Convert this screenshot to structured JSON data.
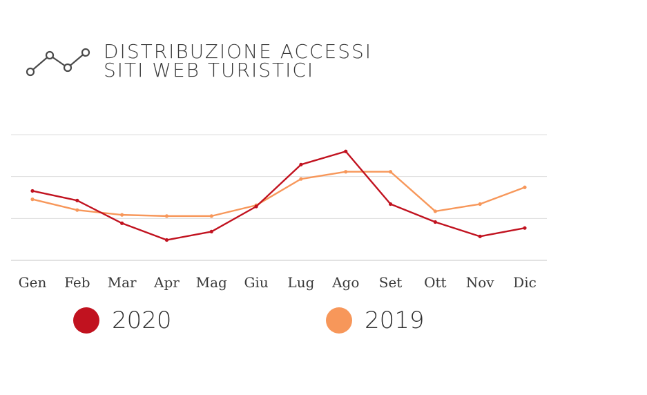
{
  "header": {
    "icon": "line-chart-icon",
    "title_line1": "DISTRIBUZIONE ACCESSI",
    "title_line2": "SITI WEB TURISTICI"
  },
  "colors": {
    "series_2020": "#c1121f",
    "series_2019": "#f7975a",
    "grid": "#dddddd"
  },
  "chart_data": {
    "type": "line",
    "title": "DISTRIBUZIONE ACCESSI SITI WEB TURISTICI",
    "categories": [
      "Gen",
      "Feb",
      "Mar",
      "Apr",
      "Mag",
      "Giu",
      "Lug",
      "Ago",
      "Set",
      "Ott",
      "Nov",
      "Dic"
    ],
    "series": [
      {
        "name": "2020",
        "values": [
          58,
          50,
          31,
          17,
          24,
          45,
          80,
          91,
          47,
          32,
          20,
          27
        ]
      },
      {
        "name": "2019",
        "values": [
          51,
          42,
          38,
          37,
          37,
          46,
          68,
          74,
          74,
          41,
          47,
          61
        ]
      }
    ],
    "ylim": [
      0,
      105
    ],
    "grid": true,
    "legend_placement": "bottom"
  }
}
